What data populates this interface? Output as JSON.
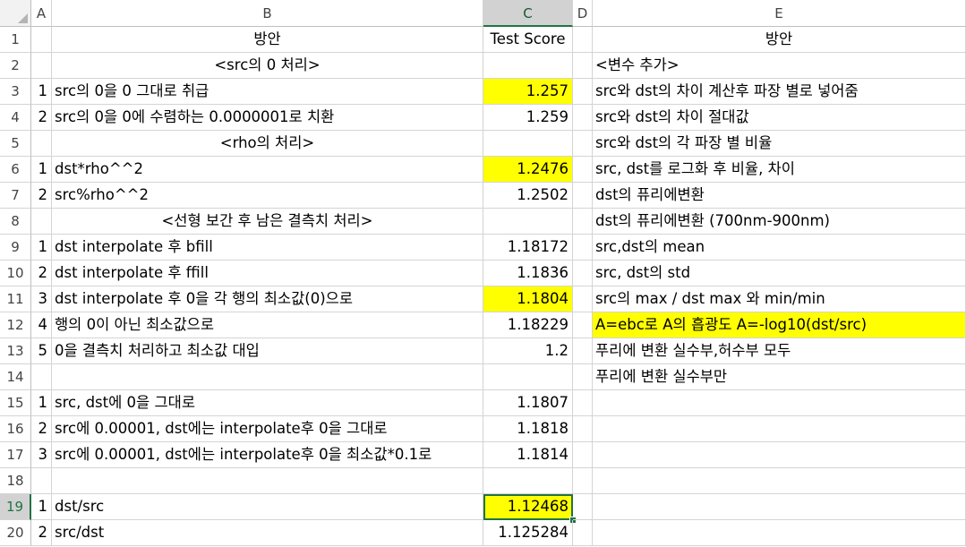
{
  "sheet": {
    "columns": [
      "A",
      "B",
      "C",
      "D",
      "E"
    ],
    "selected_column": "C",
    "selected_row": "19",
    "highlight_color": "#ffff00",
    "selection_color": "#217346",
    "rows": [
      {
        "num": "1",
        "a": "",
        "b": "방안",
        "b_align": "center",
        "c": "Test Score",
        "c_align": "center",
        "e": "방안",
        "e_align": "center"
      },
      {
        "num": "2",
        "a": "",
        "b": "<src의 0 처리>",
        "b_align": "center",
        "c": "",
        "e": "<변수 추가>"
      },
      {
        "num": "3",
        "a": "1",
        "b": "src의 0을 0 그대로 취급",
        "c": "1.257",
        "c_hl": true,
        "e": "src와 dst의 차이 계산후 파장 별로 넣어줌"
      },
      {
        "num": "4",
        "a": "2",
        "b": "src의 0을 0에 수렴하는 0.0000001로 치환",
        "c": "1.259",
        "e": "src와 dst의 차이 절대값"
      },
      {
        "num": "5",
        "a": "",
        "b": "<rho의 처리>",
        "b_align": "center",
        "c": "",
        "e": "src와 dst의 각 파장 별 비율"
      },
      {
        "num": "6",
        "a": "1",
        "b": "dst*rho^^2",
        "c": "1.2476",
        "c_hl": true,
        "e": " src, dst를 로그화 후 비율, 차이"
      },
      {
        "num": "7",
        "a": "2",
        "b": "src%rho^^2",
        "c": "1.2502",
        "e": "dst의 퓨리에변환"
      },
      {
        "num": "8",
        "a": "",
        "b": "<선형 보간 후 남은 결측치 처리>",
        "b_align": "center",
        "c": "",
        "e": "dst의 퓨리에변환 (700nm-900nm)"
      },
      {
        "num": "9",
        "a": "1",
        "b": "dst interpolate 후 bfill",
        "c": "1.18172",
        "e": " src,dst의 mean"
      },
      {
        "num": "10",
        "a": "2",
        "b": "dst interpolate 후 ffill",
        "c": "1.1836",
        "e": "src, dst의 std"
      },
      {
        "num": "11",
        "a": "3",
        "b": "dst interpolate 후 0을 각 행의 최소값(0)으로",
        "c": "1.1804",
        "c_hl": true,
        "e": "src의 max / dst max 와 min/min"
      },
      {
        "num": "12",
        "a": "4",
        "b": "행의 0이 아닌 최소값으로",
        "c": "1.18229",
        "e": "A=ebc로 A의 흡광도 A=-log10(dst/src)",
        "e_hl": true
      },
      {
        "num": "13",
        "a": "5",
        "b": "0을 결측치 처리하고 최소값 대입",
        "c": "1.2",
        "e": "푸리에 변환 실수부,허수부 모두"
      },
      {
        "num": "14",
        "a": "",
        "b": "",
        "c": "",
        "e": "푸리에 변환 실수부만"
      },
      {
        "num": "15",
        "a": "1",
        "b": "src, dst에 0을 그대로",
        "c": "1.1807",
        "e": ""
      },
      {
        "num": "16",
        "a": "2",
        "b": "src에 0.00001, dst에는 interpolate후 0을 그대로",
        "c": "1.1818",
        "e": ""
      },
      {
        "num": "17",
        "a": "3",
        "b": "src에 0.00001, dst에는 interpolate후 0을 최소값*0.1로",
        "c": "1.1814",
        "e": ""
      },
      {
        "num": "18",
        "a": "",
        "b": "",
        "c": "",
        "e": ""
      },
      {
        "num": "19",
        "a": "1",
        "b": "dst/src",
        "c": "1.12468",
        "c_hl": true,
        "c_selected": true,
        "e": ""
      },
      {
        "num": "20",
        "a": "2",
        "b": "src/dst",
        "c": "1.125284",
        "e": ""
      }
    ]
  }
}
